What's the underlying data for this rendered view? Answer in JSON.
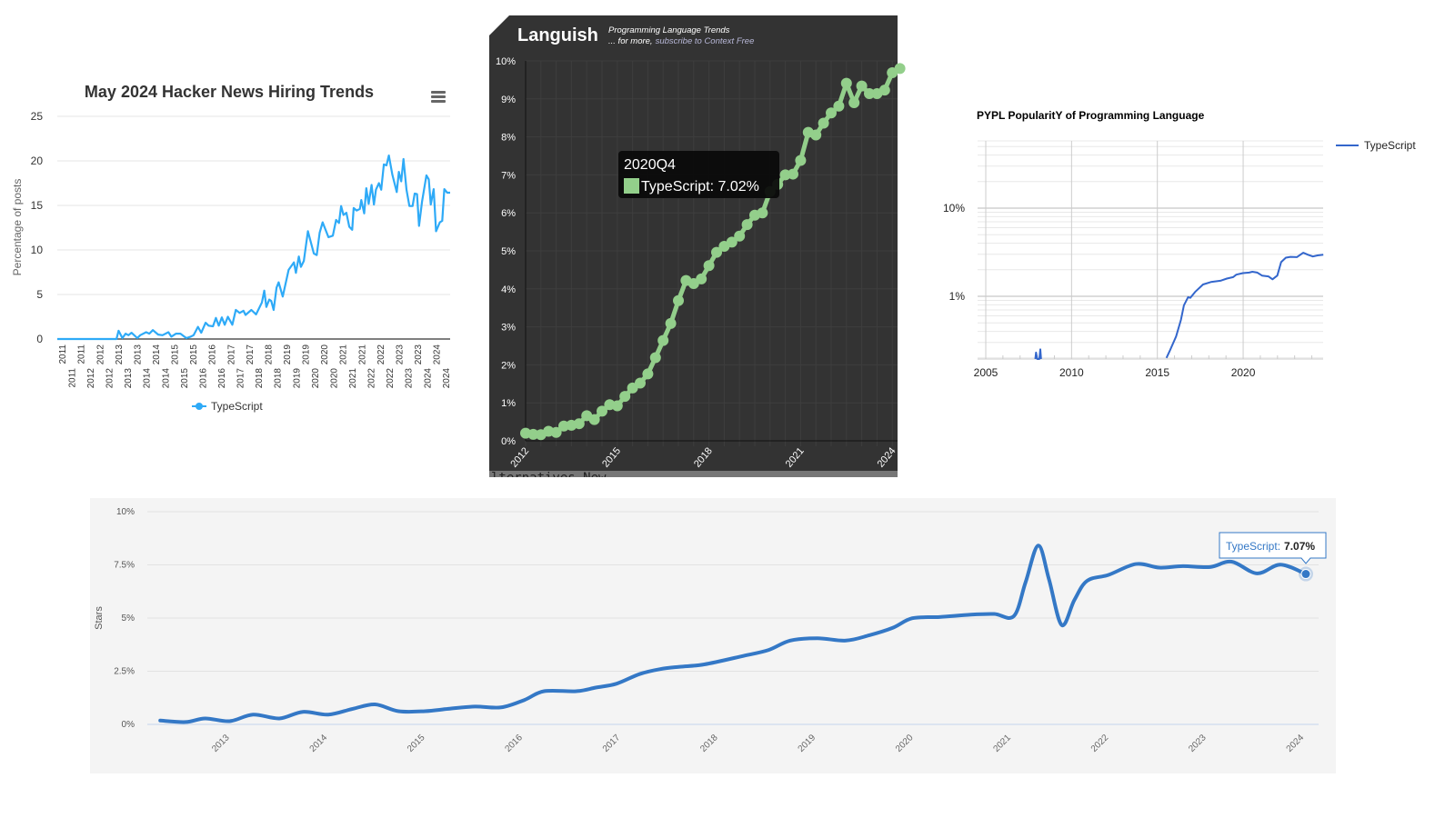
{
  "chart_data": [
    {
      "type": "line",
      "title": "May 2024 Hacker News Hiring Trends",
      "ylabel": "Percentage of posts",
      "xlabel": "",
      "ylim": [
        0,
        25
      ],
      "yticks": [
        "0",
        "5",
        "10",
        "15",
        "20",
        "25"
      ],
      "xticks": [
        "2011",
        "2011",
        "2011",
        "2012",
        "2012",
        "2012",
        "2013",
        "2013",
        "2013",
        "2014",
        "2014",
        "2014",
        "2015",
        "2015",
        "2015",
        "2016",
        "2016",
        "2016",
        "2017",
        "2017",
        "2017",
        "2018",
        "2018",
        "2018",
        "2019",
        "2019",
        "2019",
        "2020",
        "2020",
        "2020",
        "2021",
        "2021",
        "2021",
        "2022",
        "2022",
        "2022",
        "2023",
        "2023",
        "2023",
        "2024",
        "2024",
        "2024"
      ],
      "grid": true,
      "legend": "bottom",
      "menu_icon": "hamburger-menu-icon",
      "color": "#2eaaf7",
      "series": [
        {
          "name": "TypeScript",
          "x": [
            2011.0,
            2013.02,
            2013.09,
            2013.22,
            2013.33,
            2013.43,
            2013.53,
            2013.73,
            2013.83,
            2014.03,
            2014.14,
            2014.26,
            2014.44,
            2014.59,
            2014.79,
            2014.89,
            2015.05,
            2015.2,
            2015.4,
            2015.55,
            2015.65,
            2015.8,
            2015.91,
            2016.06,
            2016.16,
            2016.31,
            2016.41,
            2016.51,
            2016.61,
            2016.71,
            2016.82,
            2016.97,
            2017.09,
            2017.22,
            2017.35,
            2017.42,
            2017.62,
            2017.78,
            2017.98,
            2018.06,
            2018.13,
            2018.23,
            2018.3,
            2018.38,
            2018.48,
            2018.55,
            2018.69,
            2018.89,
            2019.07,
            2019.14,
            2019.24,
            2019.31,
            2019.41,
            2019.55,
            2019.75,
            2019.85,
            2019.95,
            2020.05,
            2020.25,
            2020.4,
            2020.51,
            2020.61,
            2020.68,
            2020.76,
            2020.86,
            2020.96,
            2021.06,
            2021.11,
            2021.21,
            2021.32,
            2021.37,
            2021.47,
            2021.54,
            2021.62,
            2021.72,
            2021.8,
            2021.87,
            2021.97,
            2022.05,
            2022.14,
            2022.23,
            2022.31,
            2022.43,
            2022.58,
            2022.65,
            2022.73,
            2022.81,
            2022.91,
            2023.01,
            2023.12,
            2023.19,
            2023.27,
            2023.34,
            2023.44,
            2023.59,
            2023.67,
            2023.74,
            2023.84,
            2023.92,
            2024.05,
            2024.13,
            2024.2,
            2024.3,
            2024.4
          ],
          "y": [
            0,
            0,
            0.93,
            0.1,
            0.6,
            0.43,
            0.7,
            0.1,
            0.43,
            0.77,
            0.6,
            1.0,
            0.5,
            0.43,
            0.77,
            0.27,
            0.6,
            0.6,
            0.1,
            0.27,
            0.43,
            1.37,
            0.7,
            1.83,
            1.5,
            1.43,
            2.37,
            1.5,
            2.43,
            1.6,
            2.5,
            1.6,
            3.27,
            2.93,
            3.17,
            2.7,
            3.27,
            2.77,
            4.1,
            5.43,
            3.6,
            4.43,
            4.27,
            3.27,
            5.77,
            6.37,
            4.77,
            7.77,
            8.6,
            7.43,
            9.27,
            8.1,
            8.77,
            12.1,
            9.6,
            9.43,
            11.93,
            13.1,
            11.43,
            11.6,
            13.37,
            13.03,
            14.93,
            13.93,
            14.17,
            12.6,
            12.27,
            14.7,
            14.43,
            14.6,
            15.6,
            14.1,
            16.93,
            15.17,
            17.3,
            15.1,
            16.77,
            17.5,
            16.77,
            19.6,
            19.5,
            20.6,
            18.43,
            16.5,
            18.77,
            17.7,
            20.2,
            16.77,
            14.93,
            14.93,
            16.33,
            16.27,
            12.7,
            15.43,
            18.37,
            17.93,
            15.1,
            16.83,
            12.1,
            13.1,
            13.27,
            16.83,
            16.43,
            16.43
          ]
        }
      ]
    },
    {
      "type": "line",
      "title": "Languish",
      "subtitle_line1": "Programming Language Trends",
      "subtitle_line2_prefix": "... for more,",
      "subtitle_line2_link": "subscribe to Context Free",
      "ylim": [
        0,
        10
      ],
      "yticks": [
        "0%",
        "1%",
        "2%",
        "3%",
        "4%",
        "5%",
        "6%",
        "7%",
        "8%",
        "9%",
        "10%"
      ],
      "xticks": [
        "2012",
        "2015",
        "2018",
        "2021",
        "2024"
      ],
      "grid": true,
      "background": "#333333",
      "color": "#93cf8b",
      "series": [
        {
          "name": "TypeScript",
          "x": [
            "2012Q1",
            "2012Q2",
            "2012Q3",
            "2012Q4",
            "2013Q1",
            "2013Q2",
            "2013Q3",
            "2013Q4",
            "2014Q1",
            "2014Q2",
            "2014Q3",
            "2014Q4",
            "2015Q1",
            "2015Q2",
            "2015Q3",
            "2015Q4",
            "2016Q1",
            "2016Q2",
            "2016Q3",
            "2016Q4",
            "2017Q1",
            "2017Q2",
            "2017Q3",
            "2017Q4",
            "2018Q1",
            "2018Q2",
            "2018Q3",
            "2018Q4",
            "2019Q1",
            "2019Q2",
            "2019Q3",
            "2019Q4",
            "2020Q1",
            "2020Q2",
            "2020Q3",
            "2020Q4",
            "2021Q1",
            "2021Q2",
            "2021Q3",
            "2021Q4",
            "2022Q1",
            "2022Q2",
            "2022Q3",
            "2022Q4",
            "2023Q1",
            "2023Q2",
            "2023Q3",
            "2023Q4",
            "2024Q1",
            "2024Q2"
          ],
          "y": [
            0.2,
            0.17,
            0.16,
            0.25,
            0.22,
            0.39,
            0.41,
            0.45,
            0.66,
            0.56,
            0.78,
            0.95,
            0.92,
            1.17,
            1.39,
            1.52,
            1.76,
            2.19,
            2.64,
            3.09,
            3.69,
            4.22,
            4.14,
            4.26,
            4.61,
            4.96,
            5.12,
            5.23,
            5.39,
            5.69,
            5.94,
            6.0,
            6.56,
            6.75,
            7.0,
            7.02,
            7.38,
            8.12,
            8.05,
            8.36,
            8.63,
            8.81,
            9.41,
            8.9,
            9.34,
            9.14,
            9.14,
            9.23,
            9.69,
            9.8
          ]
        }
      ],
      "tooltip": {
        "title": "2020Q4",
        "label": "TypeScript: 7.02%"
      },
      "footer_fragment": "lternatives  New"
    },
    {
      "type": "line",
      "title": "PYPL PopularitY of Programming Language",
      "yscale": "log",
      "yticks": [
        "10%",
        "1%"
      ],
      "xticks": [
        "2005",
        "2010",
        "2015",
        "2020"
      ],
      "xlim": [
        2004.9,
        2024.7
      ],
      "grid": true,
      "legend": "right",
      "color": "#3366cc",
      "series": [
        {
          "name": "TypeScript",
          "segments": [
            {
              "x": [
                2007.89,
                2007.93,
                2008.0,
                2008.12,
                2008.18,
                2008.22
              ],
              "y": [
                0.19,
                0.23,
                0.19,
                0.19,
                0.25,
                0.19
              ]
            },
            {
              "x": [
                2015.53,
                2015.72,
                2016.09,
                2016.37,
                2016.55,
                2016.79,
                2016.92,
                2017.2,
                2017.66,
                2018.12,
                2018.67,
                2019.05,
                2019.42,
                2019.6,
                2019.98,
                2020.35,
                2020.54,
                2020.82,
                2021.1,
                2021.47,
                2021.71,
                2021.99,
                2022.21,
                2022.49,
                2022.76,
                2023.13,
                2023.5,
                2023.78,
                2024.06,
                2024.34,
                2024.67
              ],
              "y": [
                0.2,
                0.24,
                0.35,
                0.54,
                0.79,
                0.98,
                0.96,
                1.12,
                1.36,
                1.45,
                1.5,
                1.59,
                1.65,
                1.76,
                1.83,
                1.86,
                1.9,
                1.86,
                1.72,
                1.68,
                1.56,
                1.72,
                2.44,
                2.74,
                2.8,
                2.78,
                3.12,
                2.96,
                2.83,
                2.91,
                2.96
              ]
            }
          ]
        }
      ]
    },
    {
      "type": "line",
      "title": "",
      "ylabel": "Stars",
      "ylim": [
        0,
        10
      ],
      "yticks": [
        "0%",
        "2.5%",
        "5%",
        "7.5%",
        "10%"
      ],
      "xticks": [
        "2013",
        "2014",
        "2015",
        "2016",
        "2017",
        "2018",
        "2019",
        "2020",
        "2021",
        "2022",
        "2023",
        "2024"
      ],
      "grid": true,
      "background": "#f4f4f4",
      "color": "#3478c6",
      "series": [
        {
          "name": "TypeScript",
          "x": [
            2012.27,
            2012.53,
            2012.73,
            2012.98,
            2013.22,
            2013.49,
            2013.73,
            2013.99,
            2014.24,
            2014.47,
            2014.71,
            2014.98,
            2015.22,
            2015.49,
            2015.76,
            2016.0,
            2016.2,
            2016.53,
            2016.73,
            2016.94,
            2017.18,
            2017.39,
            2017.59,
            2017.84,
            2018.24,
            2018.5,
            2018.72,
            2019.0,
            2019.29,
            2019.53,
            2019.77,
            2019.97,
            2020.25,
            2020.57,
            2020.81,
            2021.01,
            2021.13,
            2021.26,
            2021.37,
            2021.5,
            2021.63,
            2021.76,
            2021.98,
            2022.26,
            2022.5,
            2022.74,
            2023.02,
            2023.24,
            2023.5,
            2023.74,
            2024.0
          ],
          "y": [
            0.18,
            0.11,
            0.28,
            0.15,
            0.46,
            0.28,
            0.59,
            0.46,
            0.73,
            0.94,
            0.62,
            0.62,
            0.73,
            0.84,
            0.8,
            1.15,
            1.56,
            1.56,
            1.73,
            1.91,
            2.37,
            2.6,
            2.71,
            2.82,
            3.22,
            3.5,
            3.94,
            4.05,
            3.94,
            4.19,
            4.54,
            4.99,
            5.05,
            5.16,
            5.19,
            5.09,
            6.68,
            8.41,
            6.82,
            4.67,
            5.85,
            6.75,
            7.03,
            7.54,
            7.37,
            7.44,
            7.4,
            7.65,
            7.1,
            7.51,
            7.07
          ]
        }
      ],
      "tooltip": {
        "series_label": "TypeScript:",
        "value": "7.07%"
      }
    }
  ]
}
